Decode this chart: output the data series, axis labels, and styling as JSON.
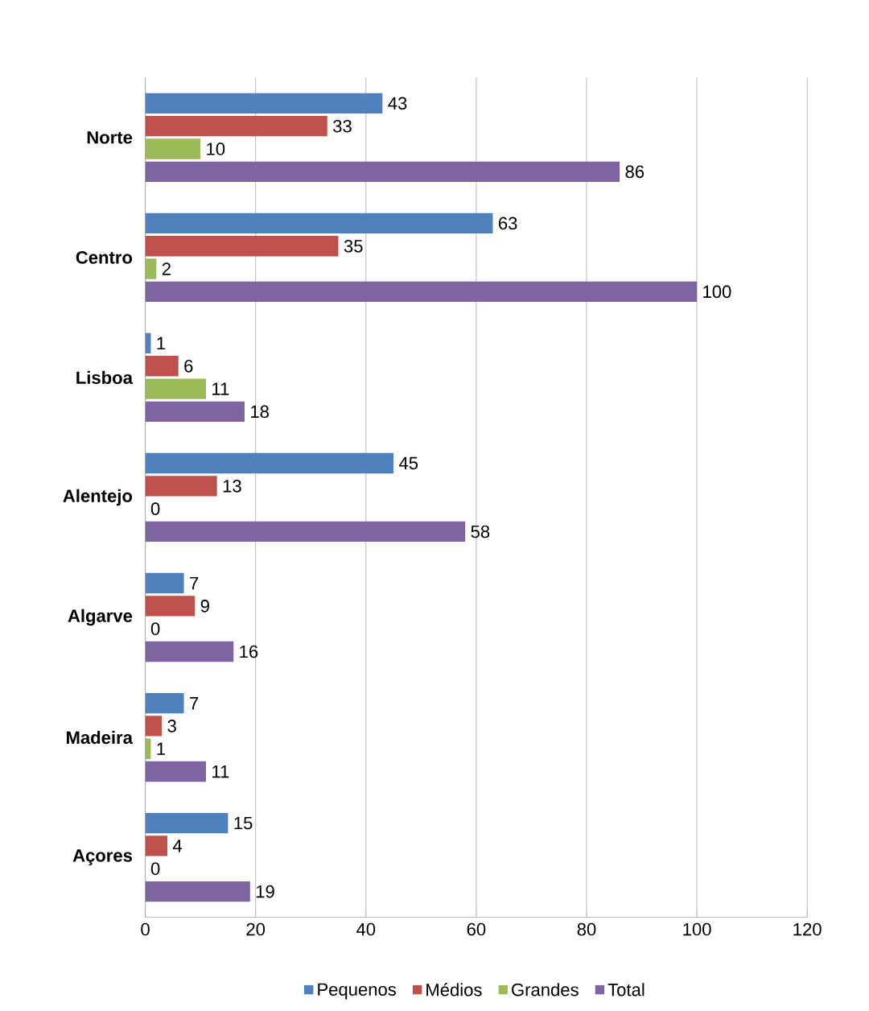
{
  "chart_data": {
    "type": "bar",
    "orientation": "horizontal",
    "categories": [
      "Norte",
      "Centro",
      "Lisboa",
      "Alentejo",
      "Algarve",
      "Madeira",
      "Açores"
    ],
    "series": [
      {
        "name": "Pequenos",
        "color": "#4f81bd",
        "values": [
          43,
          63,
          1,
          45,
          7,
          7,
          15
        ]
      },
      {
        "name": "Médios",
        "color": "#c0504d",
        "values": [
          33,
          35,
          6,
          13,
          9,
          3,
          4
        ]
      },
      {
        "name": "Grandes",
        "color": "#9bbb59",
        "values": [
          10,
          2,
          11,
          0,
          0,
          1,
          0
        ]
      },
      {
        "name": "Total",
        "color": "#8064a2",
        "values": [
          86,
          100,
          18,
          58,
          16,
          11,
          19
        ]
      }
    ],
    "xlim": [
      0,
      120
    ],
    "xticks": [
      0,
      20,
      40,
      60,
      80,
      100,
      120
    ],
    "grid": "x",
    "legend": "bottom",
    "data_labels": true
  }
}
